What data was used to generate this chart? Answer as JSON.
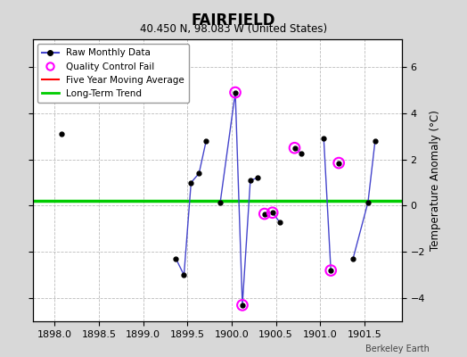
{
  "title": "FAIRFIELD",
  "subtitle": "40.450 N, 98.083 W (United States)",
  "ylabel": "Temperature Anomaly (°C)",
  "watermark": "Berkeley Earth",
  "xlim": [
    1897.75,
    1901.92
  ],
  "ylim": [
    -5.0,
    7.2
  ],
  "xticks": [
    1898,
    1898.5,
    1899,
    1899.5,
    1900,
    1900.5,
    1901,
    1901.5
  ],
  "yticks": [
    -4,
    -2,
    0,
    2,
    4,
    6
  ],
  "long_term_trend_y": 0.2,
  "background_color": "#d8d8d8",
  "plot_bg_color": "#ffffff",
  "segments": [
    [
      [
        1898.08,
        3.1
      ]
    ],
    [
      [
        1899.37,
        -2.3
      ],
      [
        1899.46,
        -3.0
      ],
      [
        1899.54,
        1.0
      ],
      [
        1899.63,
        1.4
      ],
      [
        1899.71,
        2.8
      ]
    ],
    [
      [
        1899.87,
        0.15
      ],
      [
        1900.04,
        4.9
      ],
      [
        1900.12,
        -4.3
      ],
      [
        1900.21,
        1.1
      ],
      [
        1900.29,
        1.2
      ]
    ],
    [
      [
        1900.37,
        -0.35
      ],
      [
        1900.46,
        -0.3
      ],
      [
        1900.54,
        -0.7
      ]
    ],
    [
      [
        1900.71,
        2.5
      ],
      [
        1900.79,
        2.25
      ]
    ],
    [
      [
        1901.04,
        2.9
      ],
      [
        1901.12,
        -2.8
      ]
    ],
    [
      [
        1901.21,
        1.85
      ]
    ],
    [
      [
        1901.37,
        -2.3
      ],
      [
        1901.54,
        0.15
      ],
      [
        1901.62,
        2.8
      ]
    ]
  ],
  "qc_fail_points": [
    [
      1900.04,
      4.9
    ],
    [
      1900.12,
      -4.3
    ],
    [
      1900.37,
      -0.35
    ],
    [
      1900.46,
      -0.3
    ],
    [
      1900.71,
      2.5
    ],
    [
      1901.12,
      -2.8
    ],
    [
      1901.21,
      1.85
    ]
  ],
  "line_color": "#4444cc",
  "marker_color": "#000000",
  "qc_color": "#ff00ff",
  "trend_color": "#00cc00",
  "moving_avg_color": "#ff0000"
}
